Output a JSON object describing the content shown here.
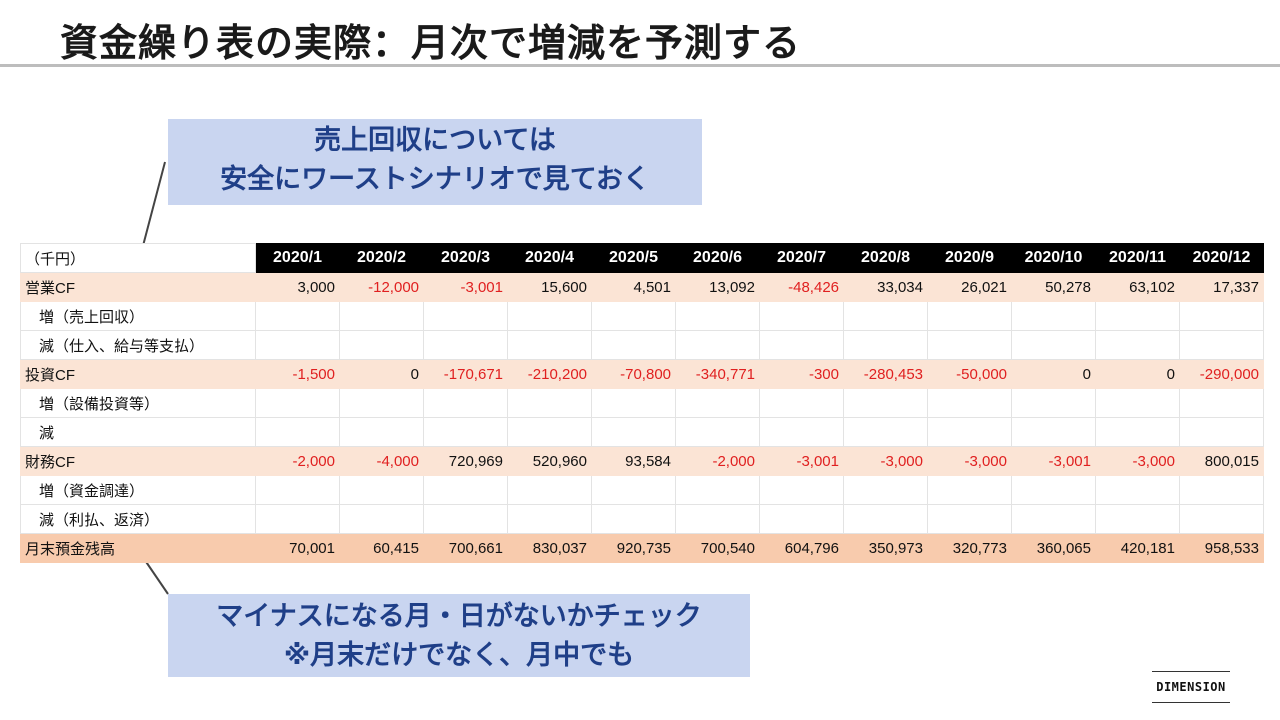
{
  "title": "資金繰り表の実際：月次で増減を予測する",
  "callout_top": {
    "line1": "売上回収については",
    "line2": "安全にワーストシナリオで見ておく"
  },
  "callout_bottom": {
    "line1": "マイナスになる月・日がないかチェック",
    "line2": "※月末だけでなく、月中でも"
  },
  "table": {
    "unit": "（千円）",
    "months": [
      "2020/1",
      "2020/2",
      "2020/3",
      "2020/4",
      "2020/5",
      "2020/6",
      "2020/7",
      "2020/8",
      "2020/9",
      "2020/10",
      "2020/11",
      "2020/12"
    ],
    "rows": [
      {
        "label": "営業CF",
        "type": "main",
        "values": [
          "3,000",
          "-12,000",
          "-3,001",
          "15,600",
          "4,501",
          "13,092",
          "-48,426",
          "33,034",
          "26,021",
          "50,278",
          "63,102",
          "17,337"
        ]
      },
      {
        "label": "増（売上回収）",
        "type": "sub",
        "values": [
          "",
          "",
          "",
          "",
          "",
          "",
          "",
          "",
          "",
          "",
          "",
          ""
        ]
      },
      {
        "label": "減（仕入、給与等支払）",
        "type": "sub",
        "values": [
          "",
          "",
          "",
          "",
          "",
          "",
          "",
          "",
          "",
          "",
          "",
          ""
        ]
      },
      {
        "label": "投資CF",
        "type": "main",
        "values": [
          "-1,500",
          "0",
          "-170,671",
          "-210,200",
          "-70,800",
          "-340,771",
          "-300",
          "-280,453",
          "-50,000",
          "0",
          "0",
          "-290,000"
        ]
      },
      {
        "label": "増（設備投資等）",
        "type": "sub",
        "values": [
          "",
          "",
          "",
          "",
          "",
          "",
          "",
          "",
          "",
          "",
          "",
          ""
        ]
      },
      {
        "label": "減",
        "type": "sub",
        "values": [
          "",
          "",
          "",
          "",
          "",
          "",
          "",
          "",
          "",
          "",
          "",
          ""
        ]
      },
      {
        "label": "財務CF",
        "type": "main",
        "values": [
          "-2,000",
          "-4,000",
          "720,969",
          "520,960",
          "93,584",
          "-2,000",
          "-3,001",
          "-3,000",
          "-3,000",
          "-3,001",
          "-3,000",
          "800,015"
        ]
      },
      {
        "label": "増（資金調達）",
        "type": "sub",
        "values": [
          "",
          "",
          "",
          "",
          "",
          "",
          "",
          "",
          "",
          "",
          "",
          ""
        ]
      },
      {
        "label": "減（利払、返済）",
        "type": "sub",
        "values": [
          "",
          "",
          "",
          "",
          "",
          "",
          "",
          "",
          "",
          "",
          "",
          ""
        ]
      },
      {
        "label": "月末預金残高",
        "type": "total",
        "values": [
          "70,001",
          "60,415",
          "700,661",
          "830,037",
          "920,735",
          "700,540",
          "604,796",
          "350,973",
          "320,773",
          "360,065",
          "420,181",
          "958,533"
        ]
      }
    ]
  },
  "colors": {
    "callout_bg": "#c9d5f0",
    "callout_text": "#1f3f88",
    "negative": "#e02020",
    "row_main_bg": "#fbe4d5",
    "row_total_bg": "#f8cbad",
    "header_bg": "#000000"
  },
  "logo": "DIMENSION"
}
